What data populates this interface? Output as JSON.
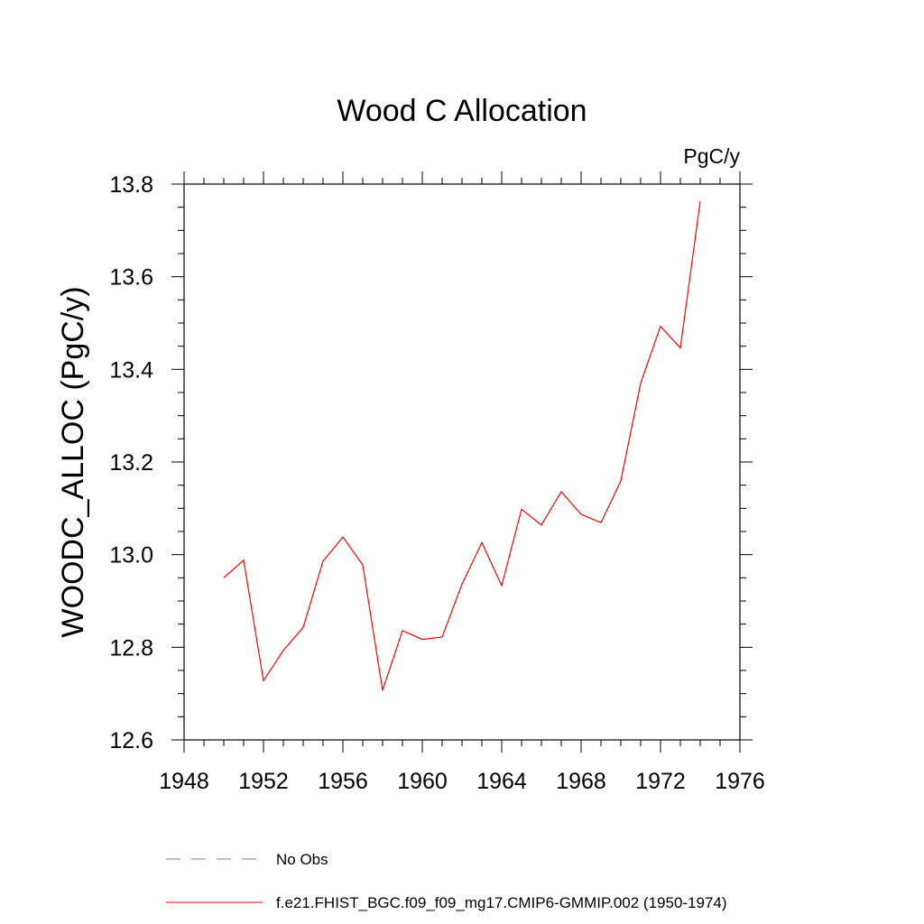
{
  "chart_data": {
    "type": "line",
    "title": "Wood C Allocation",
    "units_label": "PgC/y",
    "ylabel": "WOODC_ALLOC  (PgC/y)",
    "xlabel": "",
    "xlim": [
      1948,
      1976
    ],
    "ylim": [
      12.6,
      13.8
    ],
    "x_ticks": [
      1948,
      1952,
      1956,
      1960,
      1964,
      1968,
      1972,
      1976
    ],
    "x_tick_labels": [
      "1948",
      "1952",
      "1956",
      "1960",
      "1964",
      "1968",
      "1972",
      "1976"
    ],
    "y_ticks": [
      12.6,
      12.8,
      13.0,
      13.2,
      13.4,
      13.6,
      13.8
    ],
    "y_tick_labels": [
      "12.6",
      "12.8",
      "13.0",
      "13.2",
      "13.4",
      "13.6",
      "13.8"
    ],
    "grid": false,
    "legend_position": "bottom",
    "series": [
      {
        "name": "f.e21.FHIST_BGC.f09_f09_mg17.CMIP6-GMMIP.002 (1950-1974)",
        "color": "#ff0000",
        "style": "solid",
        "x": [
          1950,
          1951,
          1952,
          1953,
          1954,
          1955,
          1956,
          1957,
          1958,
          1959,
          1960,
          1961,
          1962,
          1963,
          1964,
          1965,
          1966,
          1967,
          1968,
          1969,
          1970,
          1971,
          1972,
          1973,
          1974
        ],
        "y": [
          12.95,
          12.988,
          12.728,
          12.793,
          12.843,
          12.986,
          13.038,
          12.978,
          12.707,
          12.836,
          12.817,
          12.822,
          12.936,
          13.026,
          12.933,
          13.098,
          13.064,
          13.136,
          13.087,
          13.069,
          13.159,
          13.37,
          13.493,
          13.446,
          13.763
        ]
      }
    ],
    "legend": [
      {
        "label": "No Obs",
        "color": "#7b6fd0",
        "style": "dashed"
      },
      {
        "label": "f.e21.FHIST_BGC.f09_f09_mg17.CMIP6-GMMIP.002 (1950-1974)",
        "color": "#ff0000",
        "style": "solid"
      }
    ]
  }
}
